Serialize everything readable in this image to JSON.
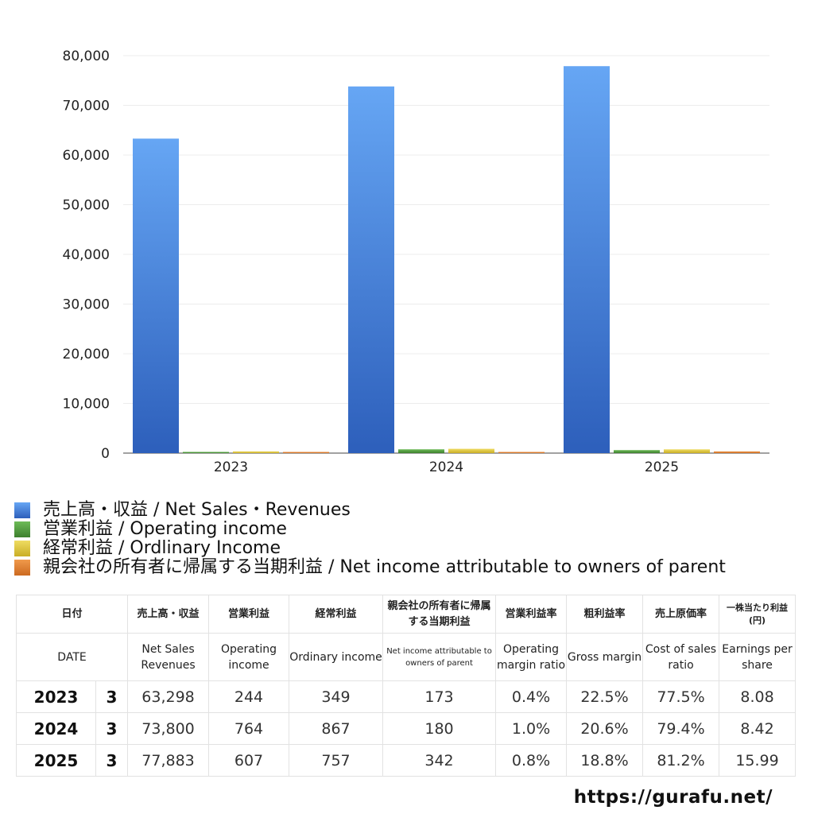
{
  "chart_data": {
    "type": "bar",
    "categories": [
      "2023",
      "2024",
      "2025"
    ],
    "series": [
      {
        "name": "売上高・収益 / Net Sales・Revenues",
        "color": "#3f7fdc",
        "values": [
          63298,
          73800,
          77883
        ]
      },
      {
        "name": "営業利益 / Operating income",
        "color": "#4e9a3c",
        "values": [
          244,
          764,
          607
        ]
      },
      {
        "name": "経常利益 / Ordlinary Income",
        "color": "#d9c23a",
        "values": [
          349,
          867,
          757
        ]
      },
      {
        "name": "親会社の所有者に帰属する当期利益 / Net income attributable to owners of parent",
        "color": "#e07a2e",
        "values": [
          173,
          180,
          342
        ]
      }
    ],
    "ylim": [
      0,
      80000
    ],
    "yticks": [
      "0",
      "10,000",
      "20,000",
      "30,000",
      "40,000",
      "50,000",
      "60,000",
      "70,000",
      "80,000"
    ],
    "grid": true,
    "legend_position": "bottom"
  },
  "table": {
    "headers_jp": [
      "日付",
      "売上高・収益",
      "営業利益",
      "経常利益",
      "親会社の所有者に帰属する当期利益",
      "営業利益率",
      "粗利益率",
      "売上原価率",
      "一株当たり利益(円)"
    ],
    "headers_en": [
      "DATE",
      "Net Sales Revenues",
      "Operating income",
      "Ordinary income",
      "Net income attributable to owners of parent",
      "Operating margin ratio",
      "Gross margin",
      "Cost of sales ratio",
      "Earnings per share"
    ],
    "rows": [
      {
        "year": "2023",
        "month": "3",
        "values": [
          "63,298",
          "244",
          "349",
          "173",
          "0.4%",
          "22.5%",
          "77.5%",
          "8.08"
        ]
      },
      {
        "year": "2024",
        "month": "3",
        "values": [
          "73,800",
          "764",
          "867",
          "180",
          "1.0%",
          "20.6%",
          "79.4%",
          "8.42"
        ]
      },
      {
        "year": "2025",
        "month": "3",
        "values": [
          "77,883",
          "607",
          "757",
          "342",
          "0.8%",
          "18.8%",
          "81.2%",
          "15.99"
        ]
      }
    ]
  },
  "source_url": "https://gurafu.net/"
}
